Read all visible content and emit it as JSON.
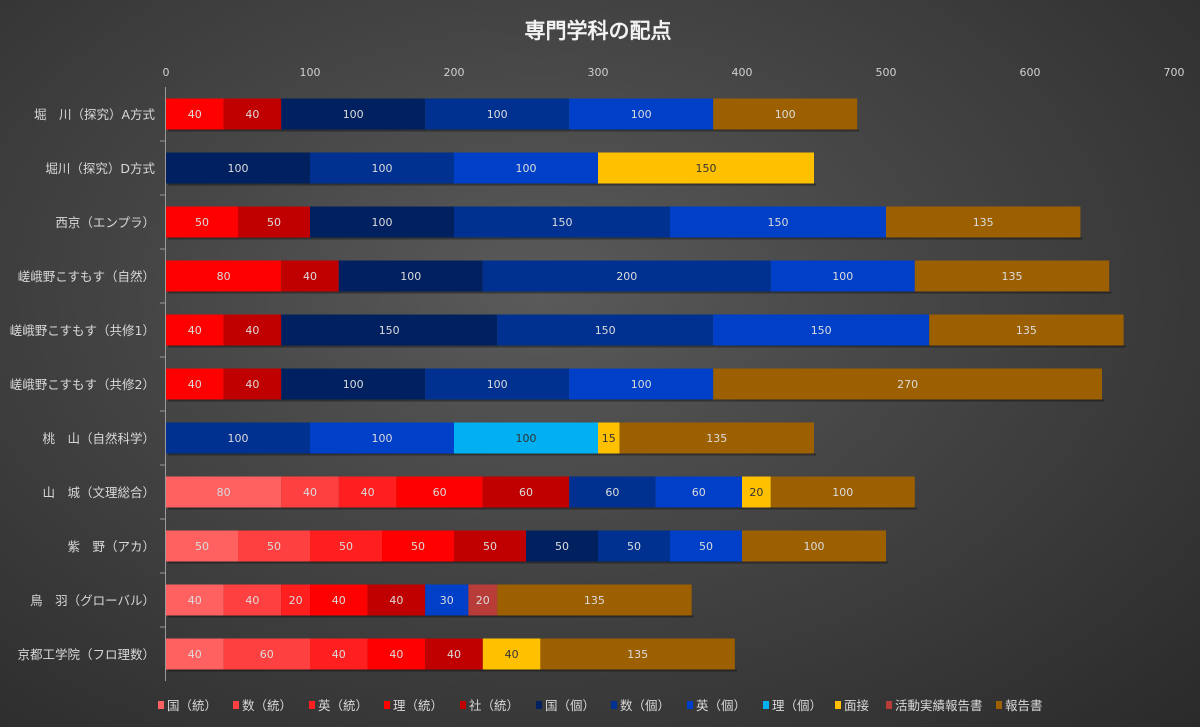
{
  "chart_data": {
    "type": "bar",
    "orientation": "horizontal",
    "stacked": true,
    "title": "専門学科の配点",
    "xlim": [
      0,
      700
    ],
    "xticks": [
      0,
      100,
      200,
      300,
      400,
      500,
      600,
      700
    ],
    "xtick_labels": [
      "0",
      "100",
      "200",
      "300",
      "400",
      "500",
      "600",
      "700"
    ],
    "legend_position": "bottom",
    "categories": [
      "堀　川（探究）A方式",
      "堀川（探究）D方式",
      "西京（エンプラ）",
      "嵯峨野こすもす（自然）",
      "嵯峨野こすもす（共修1）",
      "嵯峨野こすもす（共修2）",
      "桃　山（自然科学）",
      "山　城（文理総合）",
      "紫　野（アカ）",
      "鳥　羽（グローバル）",
      "京都工学院（フロ理数）"
    ],
    "series": [
      {
        "name": "国（統）",
        "color": "#FF6161",
        "values": [
          null,
          null,
          null,
          null,
          null,
          null,
          null,
          80,
          50,
          40,
          40
        ]
      },
      {
        "name": "数（統）",
        "color": "#FF4040",
        "values": [
          null,
          null,
          null,
          null,
          null,
          null,
          null,
          40,
          50,
          40,
          60
        ]
      },
      {
        "name": "英（統）",
        "color": "#FF1F1F",
        "values": [
          null,
          null,
          null,
          null,
          null,
          null,
          null,
          40,
          50,
          20,
          40
        ]
      },
      {
        "name": "理（統）",
        "color": "#FF0000",
        "values": [
          40,
          null,
          50,
          80,
          40,
          40,
          null,
          60,
          50,
          40,
          40
        ]
      },
      {
        "name": "社（統）",
        "color": "#C00000",
        "values": [
          40,
          null,
          50,
          40,
          40,
          40,
          null,
          60,
          50,
          40,
          40
        ]
      },
      {
        "name": "国（個）",
        "color": "#002060",
        "values": [
          100,
          100,
          100,
          100,
          150,
          100,
          null,
          null,
          50,
          null,
          null
        ]
      },
      {
        "name": "数（個）",
        "color": "#003090",
        "values": [
          100,
          100,
          150,
          200,
          150,
          100,
          100,
          60,
          50,
          null,
          null
        ]
      },
      {
        "name": "英（個）",
        "color": "#0040C8",
        "values": [
          100,
          100,
          150,
          100,
          150,
          100,
          100,
          60,
          50,
          30,
          null
        ]
      },
      {
        "name": "理（個）",
        "color": "#00B0F0",
        "values": [
          null,
          null,
          null,
          null,
          null,
          null,
          100,
          null,
          null,
          null,
          null
        ]
      },
      {
        "name": "面接",
        "color": "#FFC000",
        "values": [
          null,
          150,
          null,
          null,
          null,
          null,
          15,
          20,
          null,
          null,
          40
        ]
      },
      {
        "name": "活動実績報告書",
        "color": "#B83C38",
        "values": [
          null,
          null,
          null,
          null,
          null,
          null,
          null,
          null,
          null,
          20,
          null
        ]
      },
      {
        "name": "報告書",
        "color": "#9C6000",
        "values": [
          100,
          null,
          135,
          135,
          135,
          270,
          135,
          100,
          100,
          135,
          135
        ]
      }
    ]
  }
}
